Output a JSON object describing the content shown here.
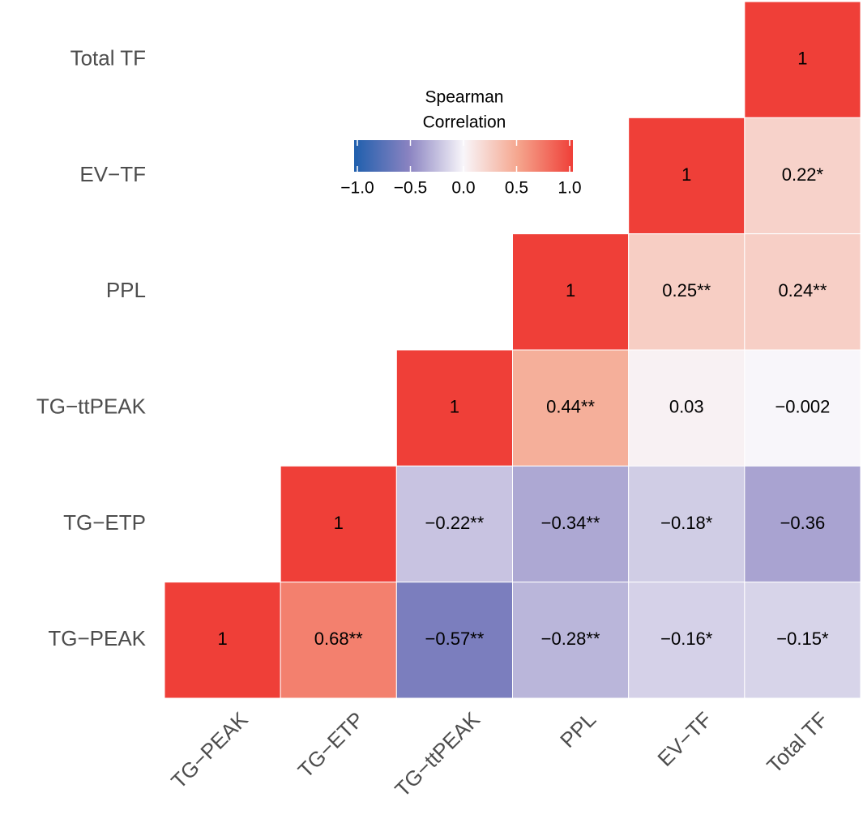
{
  "chart_data": {
    "type": "heatmap",
    "colorbar_title": [
      "Spearman",
      "Correlation"
    ],
    "x_categories": [
      "TG−PEAK",
      "TG−ETP",
      "TG−ttPEAK",
      "PPL",
      "EV−TF",
      "Total TF"
    ],
    "y_categories": [
      "Total TF",
      "EV−TF",
      "PPL",
      "TG−ttPEAK",
      "TG−ETP",
      "TG−PEAK"
    ],
    "values": [
      [
        null,
        null,
        null,
        null,
        null,
        1
      ],
      [
        null,
        null,
        null,
        null,
        1,
        0.22
      ],
      [
        null,
        null,
        null,
        1,
        0.25,
        0.24
      ],
      [
        null,
        null,
        1,
        0.44,
        0.03,
        -0.002
      ],
      [
        null,
        1,
        -0.22,
        -0.34,
        -0.18,
        -0.36
      ],
      [
        1,
        0.68,
        -0.57,
        -0.28,
        -0.16,
        -0.15
      ]
    ],
    "value_labels": [
      [
        null,
        null,
        null,
        null,
        null,
        "1"
      ],
      [
        null,
        null,
        null,
        null,
        "1",
        "0.22*"
      ],
      [
        null,
        null,
        null,
        "1",
        "0.25**",
        "0.24**"
      ],
      [
        null,
        null,
        "1",
        "0.44**",
        "0.03",
        "−0.002"
      ],
      [
        null,
        "1",
        "−0.22**",
        "−0.34**",
        "−0.18*",
        "−0.36"
      ],
      [
        "1",
        "0.68**",
        "−0.57**",
        "−0.28**",
        "−0.16*",
        "−0.15*"
      ]
    ],
    "colorscale": [
      [
        -1,
        "#1f5fad"
      ],
      [
        -0.5,
        "#8a83c1"
      ],
      [
        0,
        "#f8f6fa"
      ],
      [
        0.5,
        "#f5a58d"
      ],
      [
        1,
        "#ef3f38"
      ]
    ],
    "clim": [
      -1,
      1
    ],
    "cticks": [
      {
        "value": -1,
        "label": "−1.0"
      },
      {
        "value": -0.5,
        "label": "−0.5"
      },
      {
        "value": 0,
        "label": "0.0"
      },
      {
        "value": 0.5,
        "label": "0.5"
      },
      {
        "value": 1,
        "label": "1.0"
      }
    ]
  }
}
